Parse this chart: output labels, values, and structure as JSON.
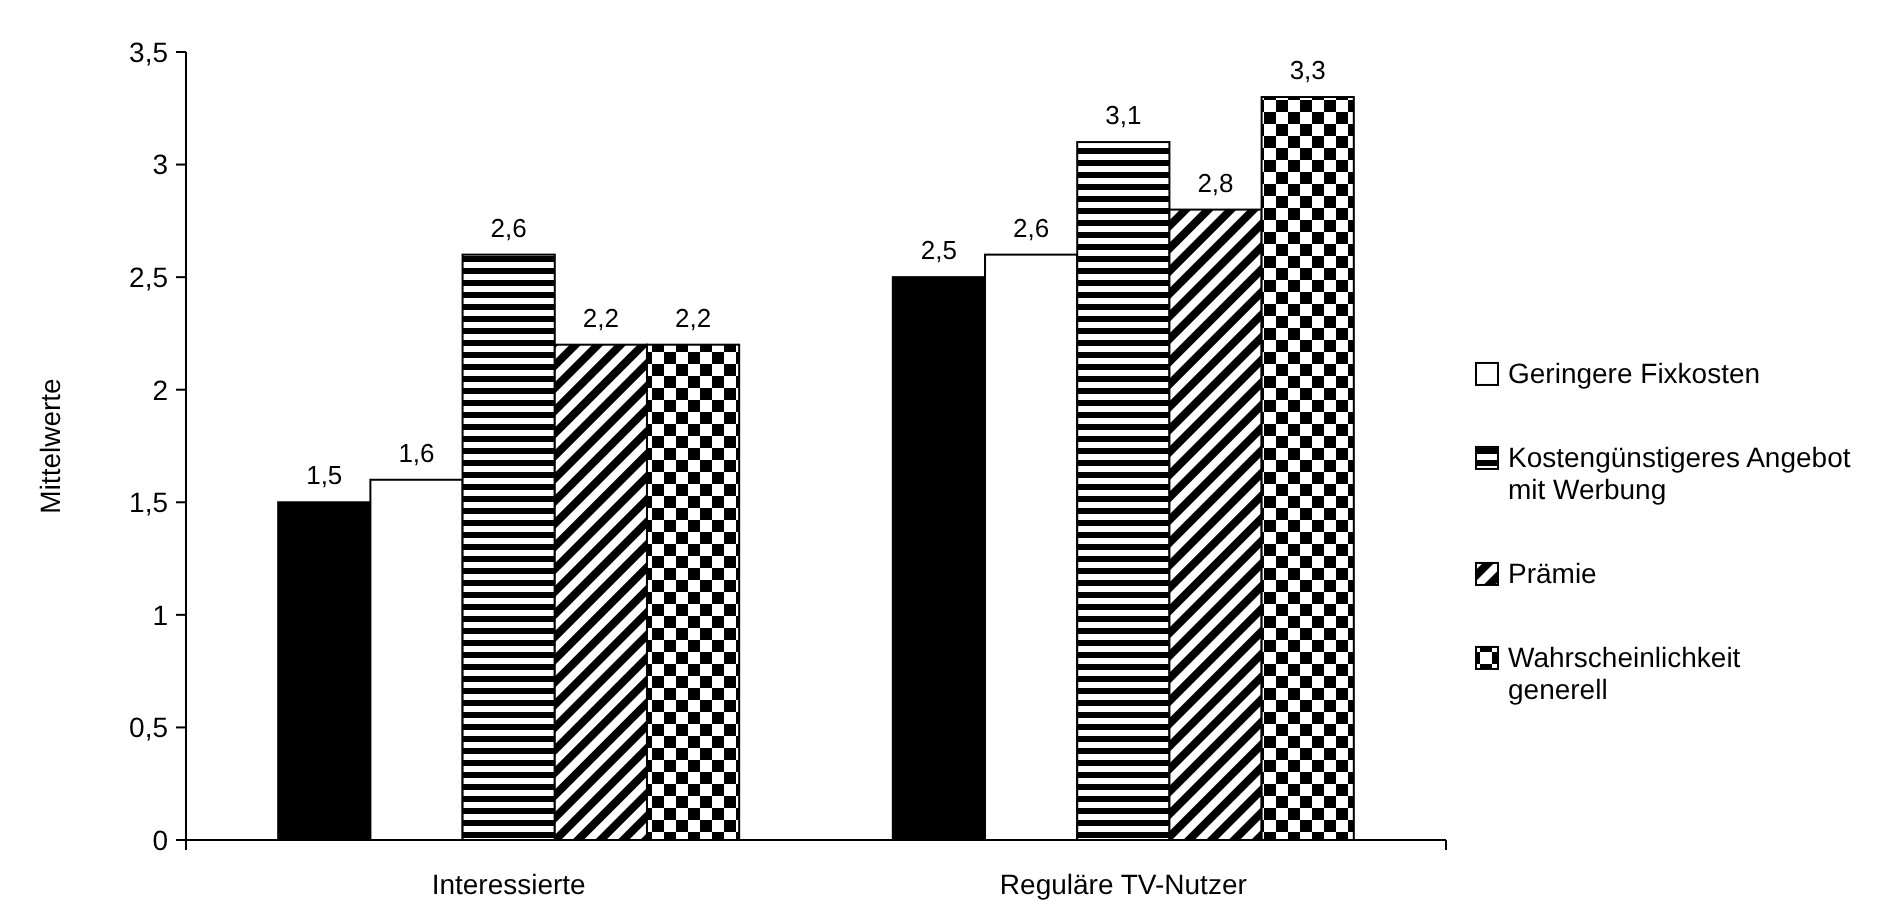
{
  "chart_data": {
    "type": "bar",
    "ylabel": "Mittelwerte",
    "categories": [
      "Interessierte",
      "Reguläre TV-Nutzer"
    ],
    "series": [
      {
        "color": "#000000",
        "values": [
          1.5,
          2.5
        ],
        "value_labels": [
          "1,5",
          "2,5"
        ]
      },
      {
        "name": "Geringere Fixkosten",
        "color": "#ffffff",
        "values": [
          1.6,
          2.6
        ],
        "value_labels": [
          "1,6",
          "2,6"
        ]
      },
      {
        "name": "Kostengünstigeres Angebot mit Werbung",
        "color": "#000000",
        "values": [
          2.6,
          3.1
        ],
        "value_labels": [
          "2,6",
          "3,1"
        ]
      },
      {
        "name": "Prämie",
        "color": "#000000",
        "values": [
          2.2,
          2.8
        ],
        "value_labels": [
          "2,2",
          "2,8"
        ]
      },
      {
        "name": "Wahrscheinlichkeit generell",
        "color": "#000000",
        "values": [
          2.2,
          3.3
        ],
        "value_labels": [
          "2,2",
          "3,3"
        ]
      }
    ],
    "ylim": [
      0,
      3.5
    ],
    "yticks": [
      0,
      {
        "value": 0.5,
        "label": "0,5"
      },
      1,
      {
        "value": 1.5,
        "label": "1,5"
      },
      2,
      {
        "value": 2.5,
        "label": "2,5"
      },
      3,
      {
        "value": 3.5,
        "label": "3,5"
      }
    ],
    "grid": false,
    "legend": "right"
  }
}
